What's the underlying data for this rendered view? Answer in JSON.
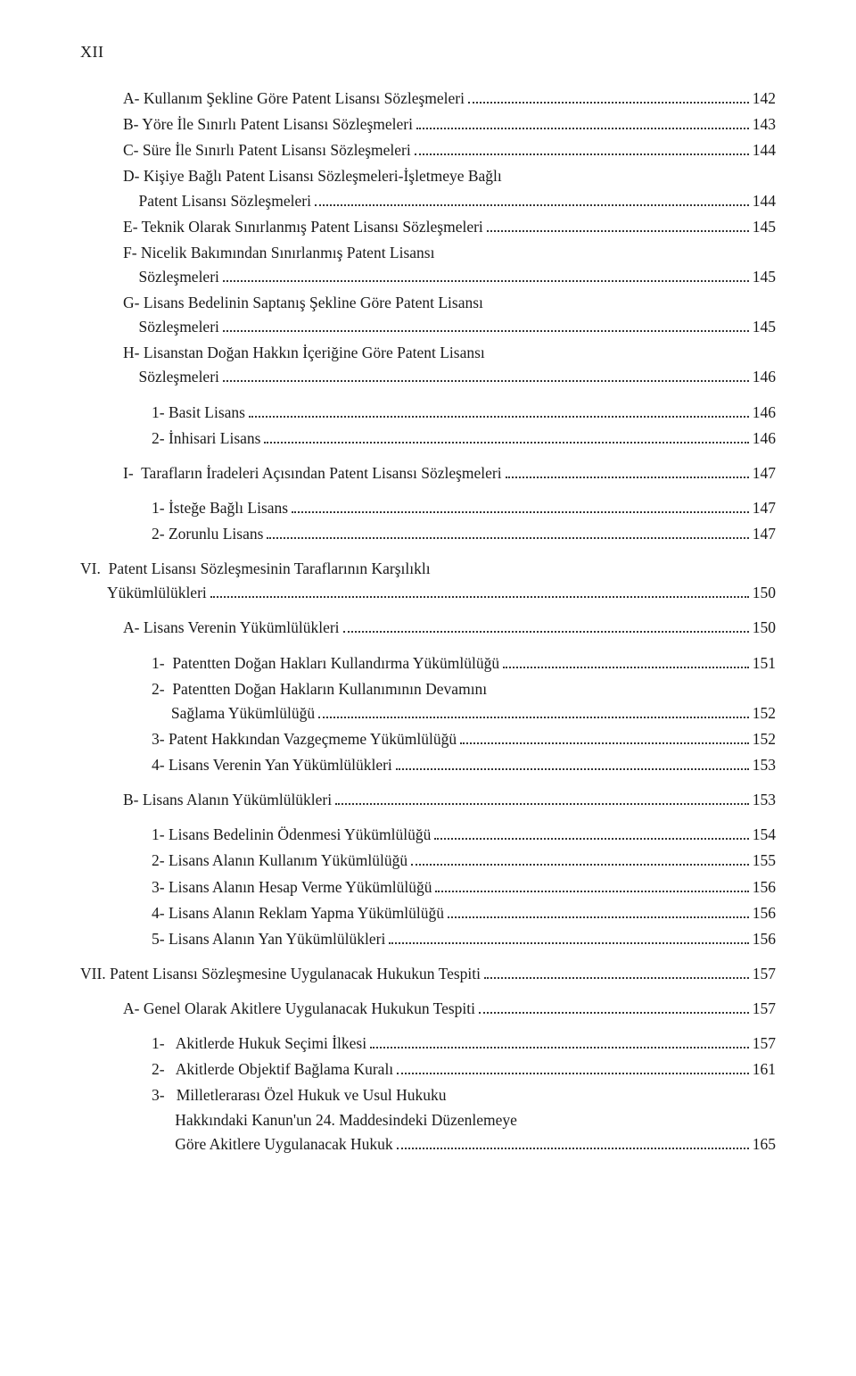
{
  "page_number": "XII",
  "entries": [
    {
      "indent": 1,
      "lines": [
        "A- Kullanım Şekline Göre Patent Lisansı Sözleşmeleri"
      ],
      "page": "142"
    },
    {
      "indent": 1,
      "lines": [
        "B- Yöre İle Sınırlı Patent Lisansı Sözleşmeleri"
      ],
      "page": "143"
    },
    {
      "indent": 1,
      "lines": [
        "C- Süre İle Sınırlı Patent Lisansı Sözleşmeleri"
      ],
      "page": "144"
    },
    {
      "indent": 1,
      "lines": [
        "D- Kişiye Bağlı Patent Lisansı Sözleşmeleri-İşletmeye Bağlı",
        "    Patent Lisansı Sözleşmeleri"
      ],
      "page": "144"
    },
    {
      "indent": 1,
      "lines": [
        "E- Teknik Olarak Sınırlanmış Patent Lisansı Sözleşmeleri"
      ],
      "page": "145"
    },
    {
      "indent": 1,
      "lines": [
        "F- Nicelik Bakımından Sınırlanmış Patent Lisansı",
        "    Sözleşmeleri"
      ],
      "page": "145"
    },
    {
      "indent": 1,
      "lines": [
        "G- Lisans Bedelinin Saptanış Şekline Göre Patent Lisansı",
        "    Sözleşmeleri"
      ],
      "page": "145"
    },
    {
      "indent": 1,
      "lines": [
        "H- Lisanstan Doğan Hakkın İçeriğine Göre Patent Lisansı",
        "    Sözleşmeleri"
      ],
      "page": "146"
    },
    {
      "gap": true
    },
    {
      "indent": 2,
      "lines": [
        "1- Basit Lisans"
      ],
      "page": "146"
    },
    {
      "indent": 2,
      "lines": [
        "2- İnhisari Lisans"
      ],
      "page": "146"
    },
    {
      "gap": true
    },
    {
      "indent": 1,
      "lines": [
        "I-  Tarafların İradeleri Açısından Patent Lisansı Sözleşmeleri"
      ],
      "page": "147"
    },
    {
      "gap": true
    },
    {
      "indent": 2,
      "lines": [
        "1- İsteğe Bağlı Lisans"
      ],
      "page": "147"
    },
    {
      "indent": 2,
      "lines": [
        "2- Zorunlu Lisans"
      ],
      "page": "147"
    },
    {
      "gap": true
    },
    {
      "indent": 0,
      "lines": [
        "VI.  Patent Lisansı Sözleşmesinin Taraflarının Karşılıklı",
        "       Yükümlülükleri"
      ],
      "page": "150"
    },
    {
      "gap": true
    },
    {
      "indent": 1,
      "lines": [
        "A- Lisans Verenin Yükümlülükleri"
      ],
      "page": "150"
    },
    {
      "gap": true
    },
    {
      "indent": 2,
      "lines": [
        "1-  Patentten Doğan Hakları Kullandırma Yükümlülüğü"
      ],
      "page": "151"
    },
    {
      "indent": 2,
      "lines": [
        "2-  Patentten Doğan Hakların Kullanımının Devamını",
        "     Sağlama Yükümlülüğü"
      ],
      "page": "152"
    },
    {
      "indent": 2,
      "lines": [
        "3- Patent Hakkından Vazgeçmeme Yükümlülüğü"
      ],
      "page": "152"
    },
    {
      "indent": 2,
      "lines": [
        "4- Lisans Verenin Yan Yükümlülükleri"
      ],
      "page": "153"
    },
    {
      "gap": true
    },
    {
      "indent": 1,
      "lines": [
        "B- Lisans Alanın Yükümlülükleri"
      ],
      "page": "153"
    },
    {
      "gap": true
    },
    {
      "indent": 2,
      "lines": [
        "1- Lisans Bedelinin Ödenmesi Yükümlülüğü"
      ],
      "page": "154"
    },
    {
      "indent": 2,
      "lines": [
        "2- Lisans Alanın Kullanım Yükümlülüğü"
      ],
      "page": "155"
    },
    {
      "indent": 2,
      "lines": [
        "3- Lisans Alanın Hesap Verme Yükümlülüğü"
      ],
      "page": "156"
    },
    {
      "indent": 2,
      "lines": [
        "4- Lisans Alanın Reklam Yapma Yükümlülüğü"
      ],
      "page": "156"
    },
    {
      "indent": 2,
      "lines": [
        "5- Lisans Alanın Yan Yükümlülükleri"
      ],
      "page": "156"
    },
    {
      "gap": true
    },
    {
      "indent": 0,
      "lines": [
        "VII. Patent Lisansı Sözleşmesine Uygulanacak Hukukun Tespiti"
      ],
      "page": "157"
    },
    {
      "gap": true
    },
    {
      "indent": 1,
      "lines": [
        "A- Genel Olarak Akitlere Uygulanacak Hukukun Tespiti"
      ],
      "page": "157"
    },
    {
      "gap": true
    },
    {
      "indent": 2,
      "lines": [
        "1-   Akitlerde Hukuk Seçimi İlkesi"
      ],
      "page": "157"
    },
    {
      "indent": 2,
      "lines": [
        "2-   Akitlerde Objektif Bağlama Kuralı"
      ],
      "page": "161"
    },
    {
      "indent": 2,
      "lines": [
        "3-   Milletlerarası Özel Hukuk ve Usul Hukuku",
        "      Hakkındaki Kanun'un 24. Maddesindeki Düzenlemeye",
        "      Göre Akitlere Uygulanacak Hukuk"
      ],
      "page": "165"
    }
  ]
}
